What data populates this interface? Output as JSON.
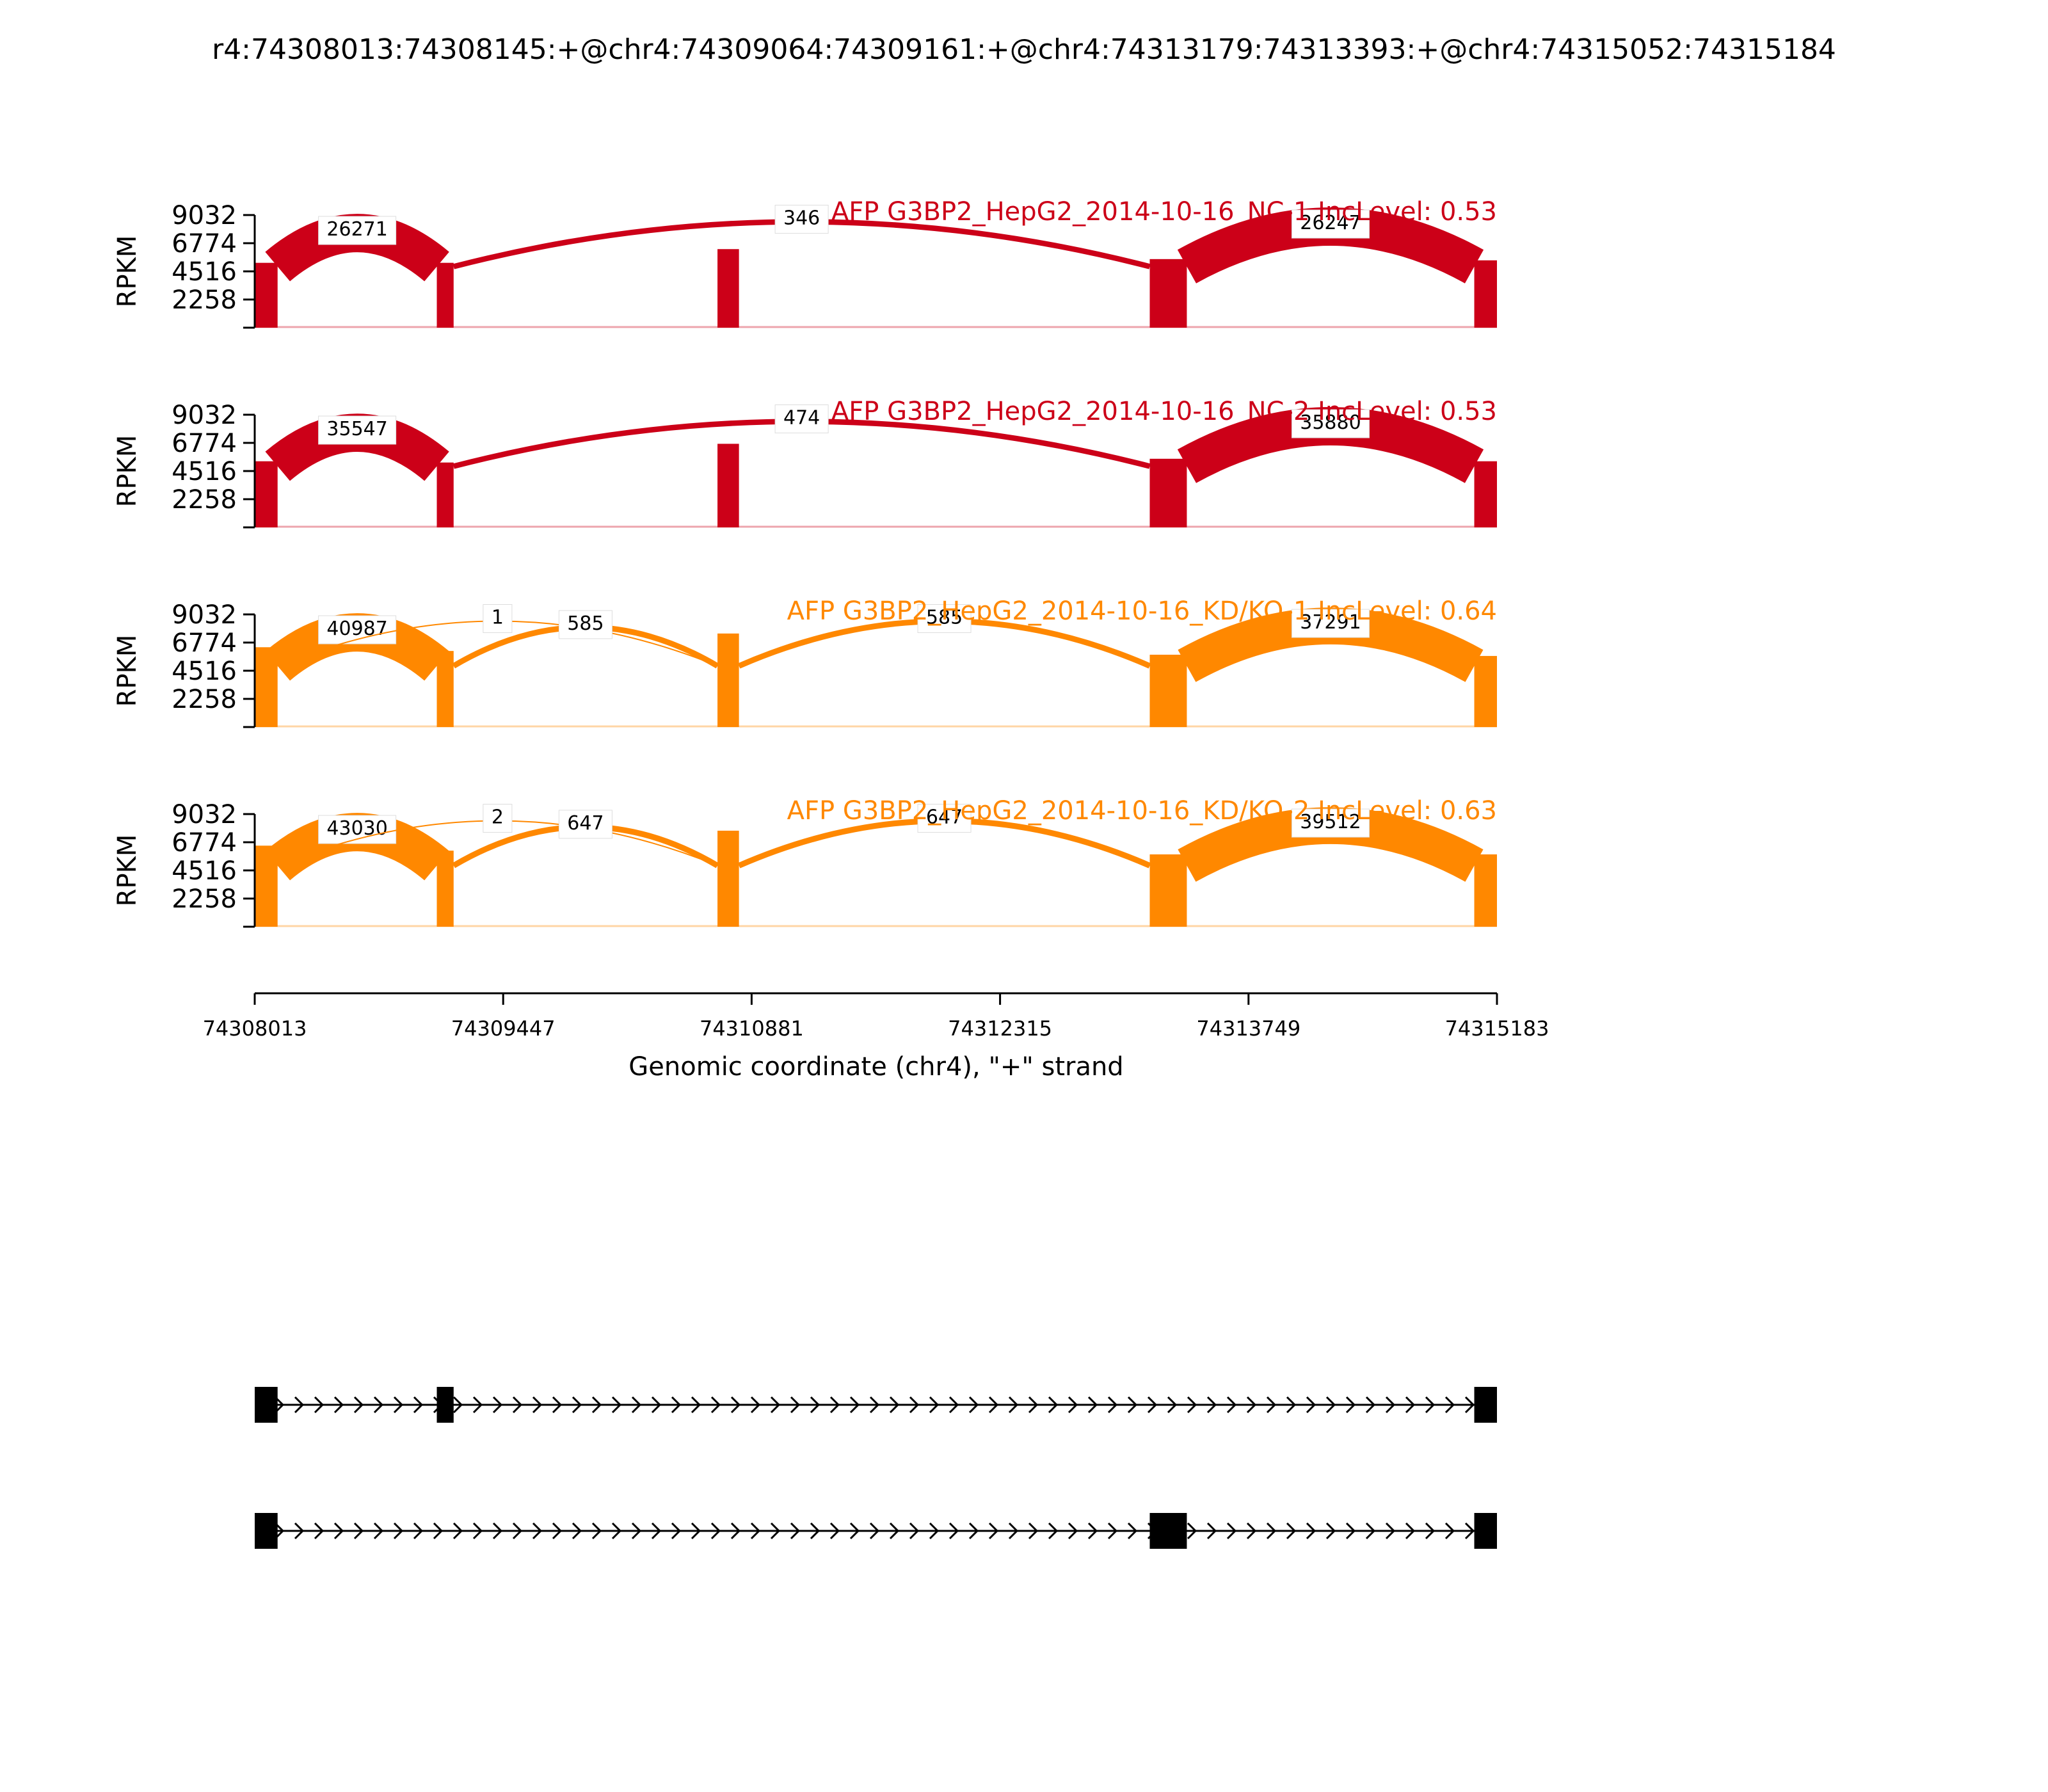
{
  "title": "r4:74308013:74308145:+@chr4:74309064:74309161:+@chr4:74313179:74313393:+@chr4:74315052:74315184",
  "colors": {
    "nc": "#cc0018",
    "kd": "#ff8800",
    "text": "#000000",
    "background": "#ffffff"
  },
  "chart_data": {
    "type": "area",
    "title": "r4:74308013:74308145:+@chr4:74309064:74309161:+@chr4:74313179:74313393:+@chr4:74315052:74315184",
    "xlabel": "Genomic coordinate (chr4), \"+\" strand",
    "ylabel": "RPKM",
    "xlim": [
      74308013,
      74315183
    ],
    "ylim": [
      0,
      9032
    ],
    "yticks": [
      2258,
      4516,
      6774,
      9032
    ],
    "xticks": [
      74308013,
      74309447,
      74310881,
      74312315,
      74313749,
      74315183
    ],
    "xtick_labels": [
      "74308013",
      "74309447",
      "74310881",
      "74312315",
      "74313749",
      "74315183"
    ],
    "grid": false,
    "exons": [
      {
        "start": 74308013,
        "end": 74308145
      },
      {
        "start": 74309064,
        "end": 74309161
      },
      {
        "start": 74310684,
        "end": 74310808
      },
      {
        "start": 74313179,
        "end": 74313393
      },
      {
        "start": 74315052,
        "end": 74315183
      }
    ],
    "series": [
      {
        "name": "AFP G3BP2_HepG2_2014-10-16_NC-1 IncLevel: 0.53",
        "group": "nc",
        "exon_levels": [
          5200,
          5200,
          6300,
          5500,
          5400
        ],
        "junctions": [
          {
            "from": 74308145,
            "to": 74309064,
            "count": 26271
          },
          {
            "from": 74309161,
            "to": 74313179,
            "count": 346
          },
          {
            "from": 74313393,
            "to": 74315052,
            "count": 26247
          }
        ]
      },
      {
        "name": "AFP G3BP2_HepG2_2014-10-16_NC-2 IncLevel: 0.53",
        "group": "nc",
        "exon_levels": [
          5300,
          5200,
          6700,
          5500,
          5300
        ],
        "junctions": [
          {
            "from": 74308145,
            "to": 74309064,
            "count": 35547
          },
          {
            "from": 74309161,
            "to": 74313179,
            "count": 474
          },
          {
            "from": 74313393,
            "to": 74315052,
            "count": 35880
          }
        ]
      },
      {
        "name": "AFP G3BP2_HepG2_2014-10-16_KD/KO-1 IncLevel: 0.64",
        "group": "kd",
        "exon_levels": [
          6400,
          6100,
          7500,
          5800,
          5700
        ],
        "junctions": [
          {
            "from": 74308145,
            "to": 74309064,
            "count": 40987
          },
          {
            "from": 74308145,
            "to": 74310684,
            "count": 1
          },
          {
            "from": 74309161,
            "to": 74310684,
            "count": 585
          },
          {
            "from": 74310808,
            "to": 74313179,
            "count": 585
          },
          {
            "from": 74313393,
            "to": 74315052,
            "count": 37291
          }
        ]
      },
      {
        "name": "AFP G3BP2_HepG2_2014-10-16_KD/KO-2 IncLevel: 0.63",
        "group": "kd",
        "exon_levels": [
          6500,
          6100,
          7700,
          5800,
          5800
        ],
        "junctions": [
          {
            "from": 74308145,
            "to": 74309064,
            "count": 43030
          },
          {
            "from": 74308145,
            "to": 74310684,
            "count": 2
          },
          {
            "from": 74309161,
            "to": 74310684,
            "count": 647
          },
          {
            "from": 74310808,
            "to": 74313179,
            "count": 647
          },
          {
            "from": 74313393,
            "to": 74315052,
            "count": 39512
          }
        ]
      }
    ],
    "isoforms": [
      {
        "exons": [
          [
            74308013,
            74308145
          ],
          [
            74309064,
            74309161
          ],
          [
            74315052,
            74315183
          ]
        ]
      },
      {
        "exons": [
          [
            74308013,
            74308145
          ],
          [
            74313179,
            74313393
          ],
          [
            74315052,
            74315183
          ]
        ]
      }
    ]
  }
}
